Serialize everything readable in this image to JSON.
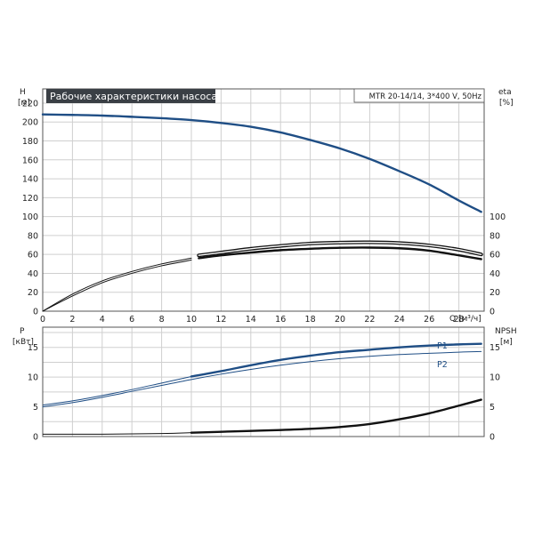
{
  "title_badge": "Рабочие характеристики насоса",
  "model_info": "MTR 20-14/14, 3*400 V, 50Hz",
  "colors": {
    "blue": "#1f4e85",
    "black": "#111111",
    "badge_bg": "#3a3f45",
    "badge_text": "#ffffff"
  },
  "chart_data": [
    {
      "type": "line",
      "name": "head-efficiency",
      "x_label": "Q [м³/ч]",
      "x_ticks": [
        0,
        2,
        4,
        6,
        8,
        10,
        12,
        14,
        16,
        18,
        20,
        22,
        24,
        26,
        28
      ],
      "xlim": [
        0,
        30
      ],
      "y_left_label_top": "H",
      "y_left_label_unit": "[м]",
      "y_left_ticks": [
        0,
        20,
        40,
        60,
        80,
        100,
        120,
        140,
        160,
        180,
        200,
        220
      ],
      "ylim": [
        0,
        230
      ],
      "y_right_label_top": "eta",
      "y_right_label_unit": "[%]",
      "y_right_ticks": [
        0,
        20,
        40,
        60,
        80,
        100
      ],
      "series": [
        {
          "name": "H",
          "color": "#1f4e85",
          "style": "thick",
          "x": [
            0,
            2,
            4,
            6,
            8,
            10,
            12,
            14,
            16,
            18,
            20,
            22,
            24,
            26,
            28,
            29.5
          ],
          "y": [
            208,
            207.5,
            206.8,
            205.5,
            204,
            202,
            199,
            195,
            189,
            181,
            172,
            161,
            148,
            134,
            117,
            105
          ]
        },
        {
          "name": "eta (upper)",
          "color": "#111111",
          "style": "thin",
          "x": [
            0,
            2,
            4,
            6,
            8,
            10
          ],
          "y": [
            0,
            18,
            32,
            42,
            50,
            56
          ]
        },
        {
          "name": "eta (upper) operating",
          "color": "#111111",
          "style": "double",
          "x": [
            10.5,
            12,
            14,
            16,
            18,
            20,
            22,
            24,
            26,
            28,
            29.5
          ],
          "y": [
            59,
            62,
            66,
            69,
            71.5,
            72.5,
            72.8,
            72,
            69.5,
            65,
            60
          ]
        },
        {
          "name": "eta (lower)",
          "color": "#111111",
          "style": "thin",
          "x": [
            0,
            2,
            4,
            6,
            8,
            10
          ],
          "y": [
            0,
            16,
            30,
            40,
            48,
            54
          ]
        },
        {
          "name": "eta (lower) operating",
          "color": "#111111",
          "style": "thick",
          "x": [
            10.5,
            12,
            14,
            16,
            18,
            20,
            22,
            24,
            26,
            28,
            29.5
          ],
          "y": [
            56,
            59,
            62,
            64.5,
            66,
            67,
            67.2,
            66.5,
            64,
            59,
            55
          ]
        }
      ]
    },
    {
      "type": "line",
      "name": "power-npsh",
      "x_ticks": [
        0,
        2,
        4,
        6,
        8,
        10,
        12,
        14,
        16,
        18,
        20,
        22,
        24,
        26,
        28
      ],
      "xlim": [
        0,
        30
      ],
      "y_left_label_top": "P",
      "y_left_label_unit": "[кВт]",
      "y_left_ticks": [
        0,
        5,
        10,
        15
      ],
      "ylim": [
        0,
        18
      ],
      "y_right_label_top": "NPSH",
      "y_right_label_unit": "[м]",
      "y_right_ticks": [
        0,
        5,
        10,
        15
      ],
      "series": [
        {
          "name": "P1",
          "label": "P1",
          "color": "#1f4e85",
          "style": "thin-then-thick",
          "x": [
            0,
            2,
            4,
            6,
            8,
            10,
            12,
            14,
            16,
            18,
            20,
            22,
            24,
            26,
            28,
            29.5
          ],
          "y": [
            5.3,
            6.0,
            6.9,
            7.9,
            9.0,
            10.1,
            11.0,
            12.0,
            12.9,
            13.6,
            14.2,
            14.6,
            15.0,
            15.3,
            15.5,
            15.6
          ]
        },
        {
          "name": "P2",
          "label": "P2",
          "color": "#1f4e85",
          "style": "thin",
          "x": [
            0,
            2,
            4,
            6,
            8,
            10,
            12,
            14,
            16,
            18,
            20,
            22,
            24,
            26,
            28,
            29.5
          ],
          "y": [
            5.0,
            5.7,
            6.6,
            7.6,
            8.6,
            9.6,
            10.5,
            11.3,
            12.0,
            12.6,
            13.1,
            13.5,
            13.8,
            14.0,
            14.2,
            14.3
          ]
        },
        {
          "name": "NPSH",
          "color": "#111111",
          "style": "thin-then-thick",
          "x": [
            0,
            4,
            8,
            10,
            12,
            14,
            16,
            18,
            20,
            22,
            24,
            26,
            28,
            29.5
          ],
          "y": [
            0.4,
            0.4,
            0.5,
            0.65,
            0.8,
            0.95,
            1.1,
            1.3,
            1.6,
            2.1,
            2.9,
            3.9,
            5.2,
            6.2
          ]
        }
      ]
    }
  ]
}
